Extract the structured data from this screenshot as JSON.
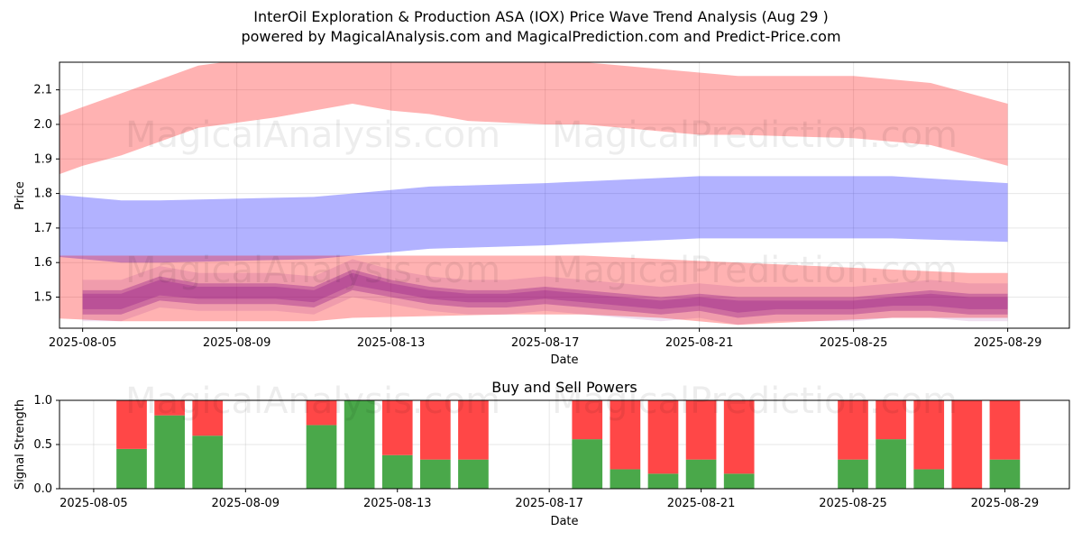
{
  "title_line1": "InterOil Exploration & Production ASA (IOX) Price Wave Trend Analysis (Aug 29 )",
  "title_line2": "powered by MagicalAnalysis.com and MagicalPrediction.com and Predict-Price.com",
  "watermarks": [
    "MagicalAnalysis.com",
    "MagicalPrediction.com"
  ],
  "colors": {
    "red_band": "#ff0000",
    "blue_band": "#0000ff",
    "purple_band": "#800080",
    "buy": "#4aa84a",
    "sell": "#ff4747"
  },
  "chart_data": [
    {
      "type": "area",
      "xlabel": "Date",
      "ylabel": "Price",
      "ylim": [
        1.41,
        2.18
      ],
      "xlim": [
        "2025-08-04",
        "2025-08-30"
      ],
      "yticks": [
        1.5,
        1.6,
        1.7,
        1.8,
        1.9,
        2.0,
        2.1
      ],
      "xticks": [
        "2025-08-05",
        "2025-08-09",
        "2025-08-13",
        "2025-08-17",
        "2025-08-21",
        "2025-08-25",
        "2025-08-29"
      ],
      "grid": true,
      "series": [
        {
          "color": "red",
          "x": [
            "2025-08-04",
            "2025-08-05",
            "2025-08-06",
            "2025-08-07",
            "2025-08-08",
            "2025-08-10",
            "2025-08-11",
            "2025-08-12",
            "2025-08-13",
            "2025-08-14",
            "2025-08-15",
            "2025-08-17",
            "2025-08-18",
            "2025-08-19",
            "2025-08-21",
            "2025-08-22",
            "2025-08-25",
            "2025-08-27",
            "2025-08-28",
            "2025-08-29"
          ],
          "upper": [
            2.01,
            2.05,
            2.09,
            2.13,
            2.17,
            2.2,
            2.2,
            2.2,
            2.2,
            2.2,
            2.19,
            2.18,
            2.18,
            2.17,
            2.15,
            2.14,
            2.14,
            2.12,
            2.09,
            2.06
          ],
          "lower": [
            1.84,
            1.88,
            1.91,
            1.95,
            1.99,
            2.02,
            2.04,
            2.06,
            2.04,
            2.03,
            2.01,
            2.0,
            2.0,
            1.99,
            1.97,
            1.97,
            1.96,
            1.94,
            1.91,
            1.88
          ]
        },
        {
          "color": "blue",
          "x": [
            "2025-08-04",
            "2025-08-06",
            "2025-08-07",
            "2025-08-11",
            "2025-08-14",
            "2025-08-17",
            "2025-08-21",
            "2025-08-22",
            "2025-08-26",
            "2025-08-29"
          ],
          "upper": [
            1.8,
            1.78,
            1.78,
            1.79,
            1.82,
            1.83,
            1.85,
            1.85,
            1.85,
            1.83
          ],
          "lower": [
            1.62,
            1.6,
            1.6,
            1.61,
            1.64,
            1.65,
            1.67,
            1.67,
            1.67,
            1.66
          ]
        },
        {
          "color": "red",
          "x": [
            "2025-08-04",
            "2025-08-06",
            "2025-08-11",
            "2025-08-12",
            "2025-08-16",
            "2025-08-18",
            "2025-08-20",
            "2025-08-22",
            "2025-08-24",
            "2025-08-26",
            "2025-08-28",
            "2025-08-29"
          ],
          "upper": [
            1.62,
            1.62,
            1.62,
            1.62,
            1.62,
            1.62,
            1.61,
            1.6,
            1.59,
            1.58,
            1.57,
            1.57
          ],
          "lower": [
            1.44,
            1.43,
            1.43,
            1.44,
            1.45,
            1.45,
            1.44,
            1.42,
            1.43,
            1.44,
            1.44,
            1.44
          ]
        },
        {
          "color": "purple",
          "x": [
            "2025-08-05",
            "2025-08-06",
            "2025-08-07",
            "2025-08-08",
            "2025-08-09",
            "2025-08-10",
            "2025-08-11",
            "2025-08-12",
            "2025-08-13",
            "2025-08-14",
            "2025-08-15",
            "2025-08-16",
            "2025-08-17",
            "2025-08-18",
            "2025-08-19",
            "2025-08-20",
            "2025-08-21",
            "2025-08-22",
            "2025-08-23",
            "2025-08-24",
            "2025-08-25",
            "2025-08-26",
            "2025-08-27",
            "2025-08-28",
            "2025-08-29"
          ],
          "upper": [
            1.52,
            1.52,
            1.56,
            1.54,
            1.54,
            1.54,
            1.53,
            1.58,
            1.55,
            1.53,
            1.52,
            1.52,
            1.53,
            1.52,
            1.51,
            1.5,
            1.51,
            1.5,
            1.5,
            1.5,
            1.5,
            1.51,
            1.52,
            1.51,
            1.51
          ],
          "lower": [
            1.45,
            1.45,
            1.49,
            1.48,
            1.48,
            1.48,
            1.47,
            1.52,
            1.5,
            1.48,
            1.47,
            1.47,
            1.48,
            1.47,
            1.46,
            1.45,
            1.46,
            1.44,
            1.45,
            1.45,
            1.45,
            1.46,
            1.46,
            1.45,
            1.45
          ]
        }
      ]
    },
    {
      "type": "bar",
      "title": "Buy and Sell Powers",
      "xlabel": "Date",
      "ylabel": "Signal Strength",
      "ylim": [
        0,
        1.0
      ],
      "yticks": [
        0.0,
        0.5,
        1.0
      ],
      "xticks": [
        "2025-08-05",
        "2025-08-09",
        "2025-08-13",
        "2025-08-17",
        "2025-08-21",
        "2025-08-25",
        "2025-08-29"
      ],
      "grid": true,
      "dates": [
        "2025-08-06",
        "2025-08-07",
        "2025-08-08",
        "2025-08-11",
        "2025-08-12",
        "2025-08-13",
        "2025-08-14",
        "2025-08-15",
        "2025-08-18",
        "2025-08-19",
        "2025-08-20",
        "2025-08-21",
        "2025-08-22",
        "2025-08-25",
        "2025-08-26",
        "2025-08-27",
        "2025-08-28",
        "2025-08-29"
      ],
      "buy": [
        0.45,
        0.83,
        0.6,
        0.72,
        1.0,
        0.38,
        0.33,
        0.33,
        0.56,
        0.22,
        0.17,
        0.33,
        0.17,
        0.33,
        0.56,
        0.22,
        0.0,
        0.33
      ],
      "sell": [
        0.55,
        0.17,
        0.4,
        0.28,
        0.0,
        0.62,
        0.67,
        0.67,
        0.44,
        0.78,
        0.83,
        0.67,
        0.83,
        0.67,
        0.44,
        0.78,
        1.0,
        0.67
      ]
    }
  ]
}
